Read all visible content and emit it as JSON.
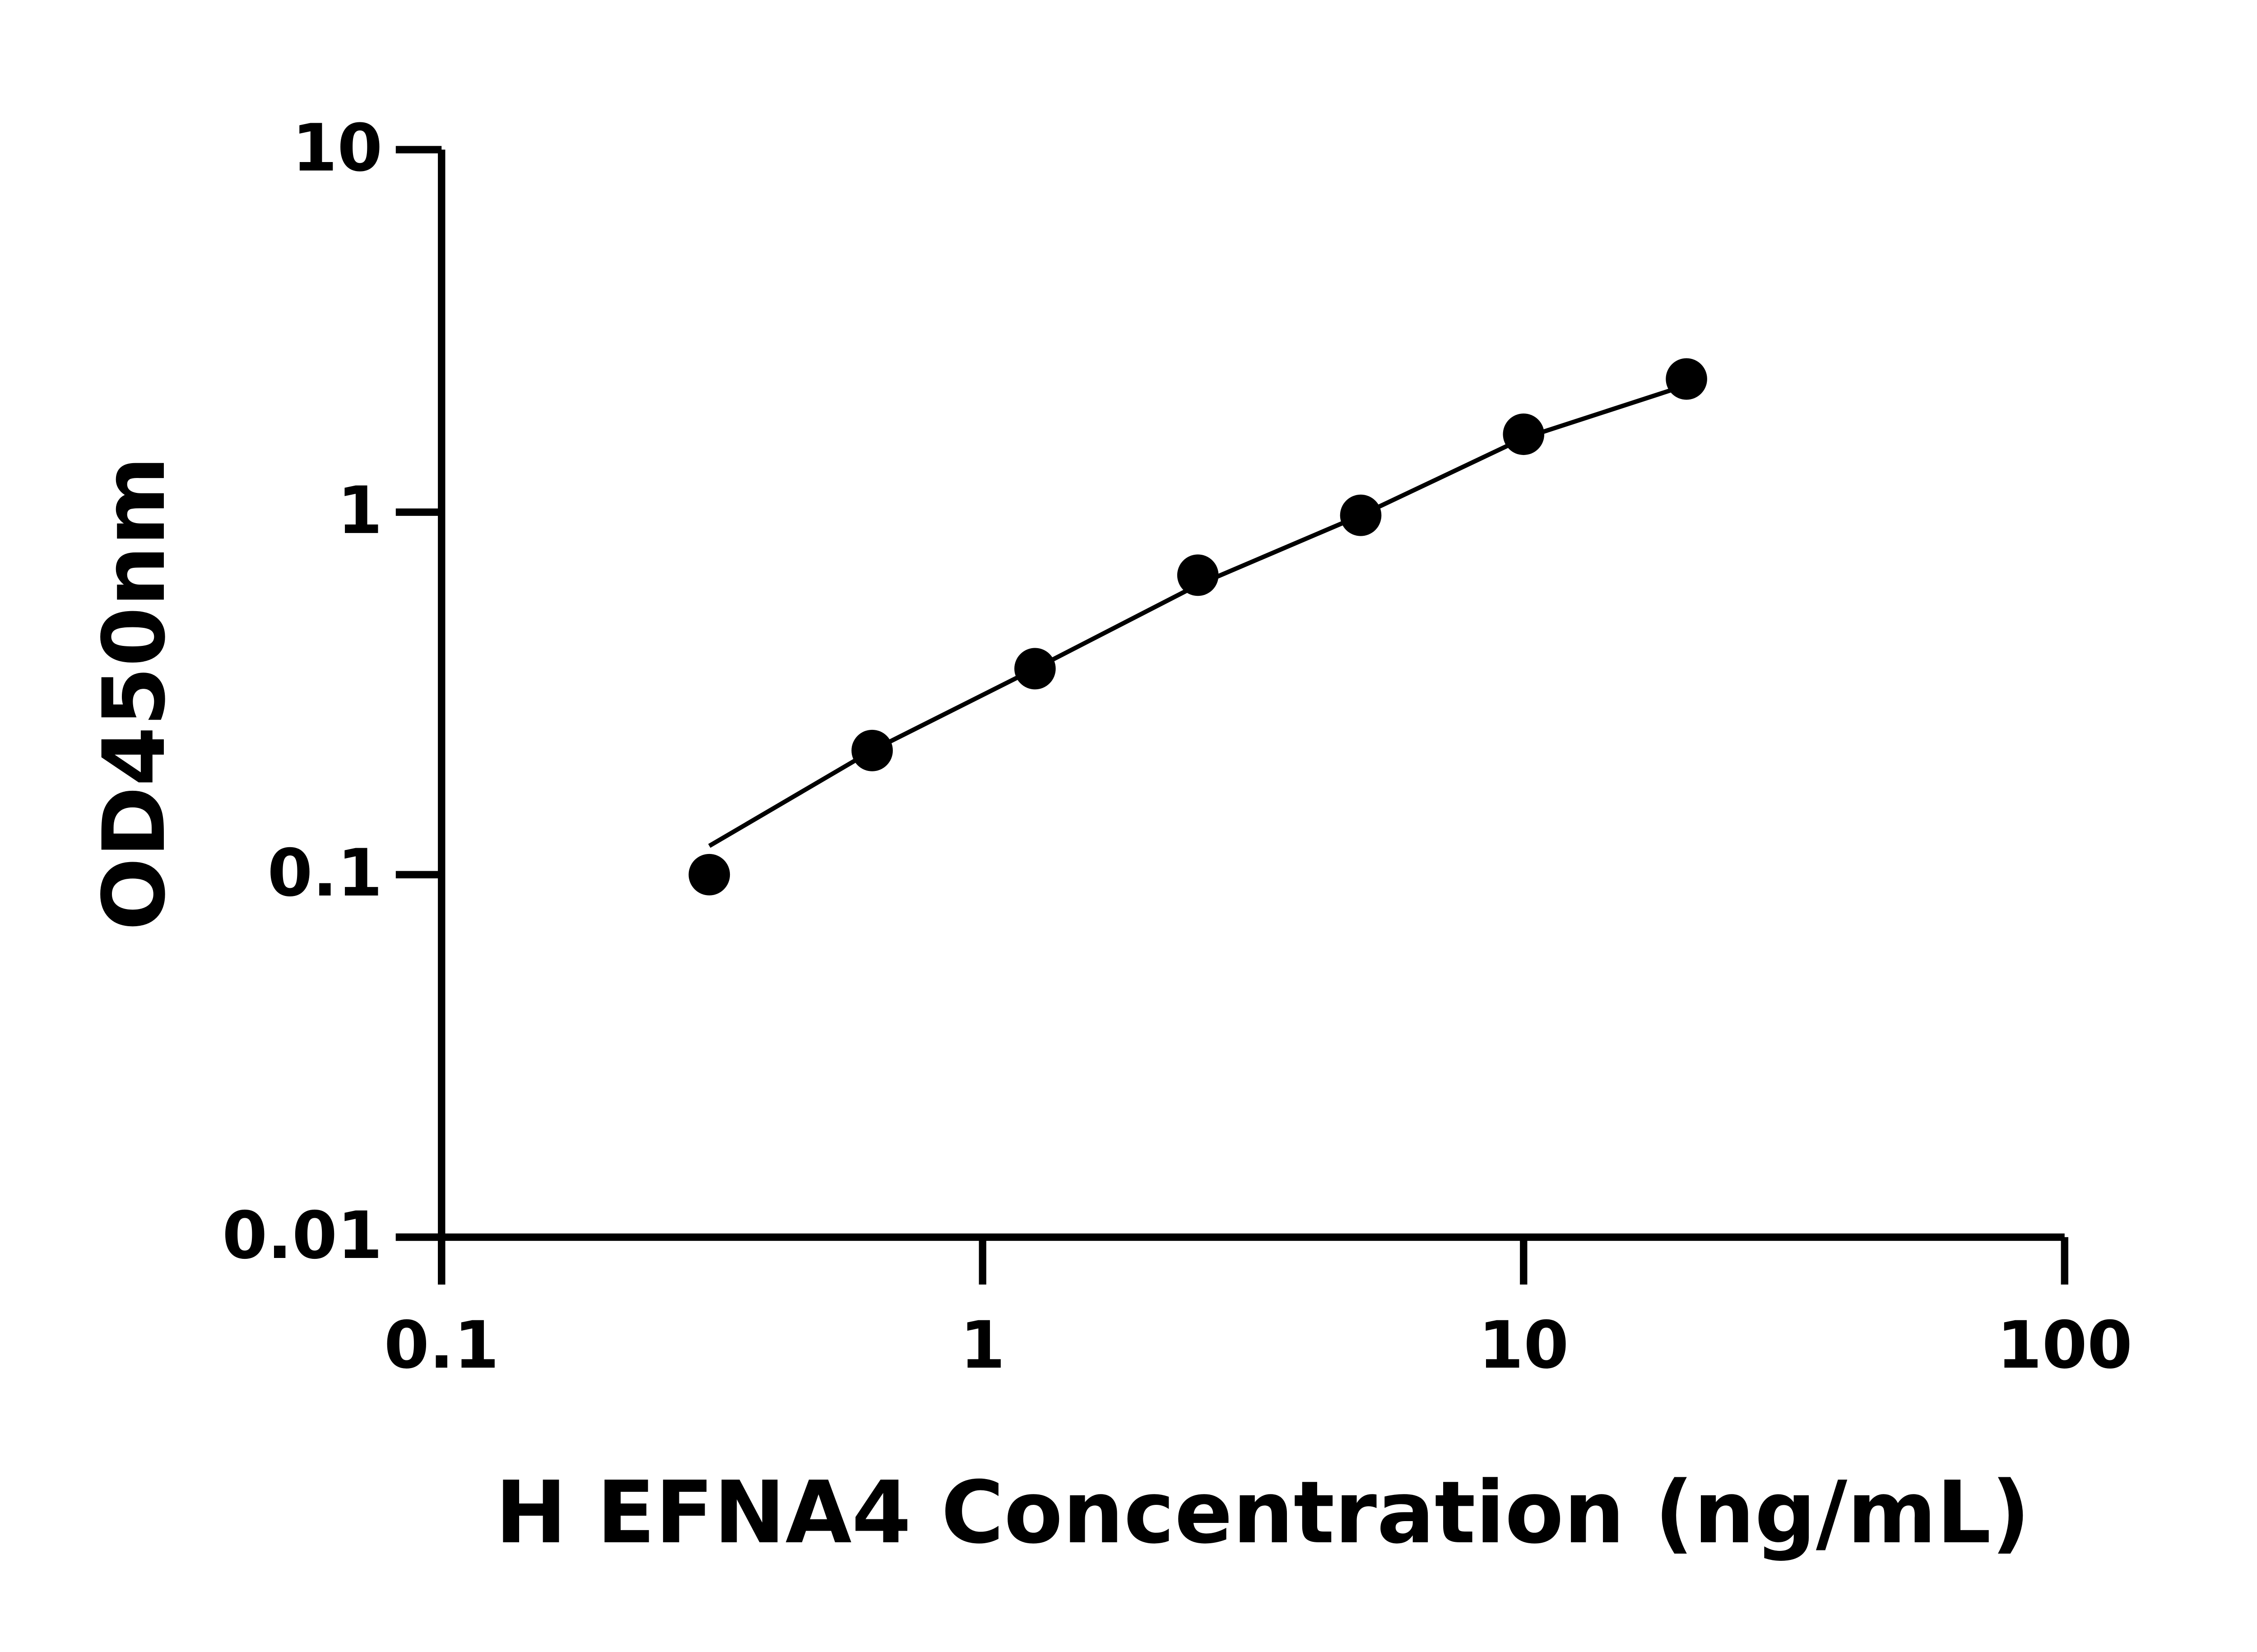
{
  "chart_data": {
    "type": "scatter",
    "x_label": "H EFNA4 Concentration (ng/mL)",
    "y_label": "OD450nm",
    "x": [
      0.3125,
      0.625,
      1.25,
      2.5,
      5,
      10,
      20
    ],
    "series": [
      {
        "color": "#000000",
        "mode": "markers",
        "values": [
          0.1,
          0.22,
          0.37,
          0.67,
          0.98,
          1.64,
          2.33
        ]
      },
      {
        "color": "#000000",
        "mode": "line",
        "values": [
          0.12,
          0.22,
          0.37,
          0.63,
          0.98,
          1.6,
          2.24
        ]
      }
    ],
    "xscale": "log",
    "yscale": "log",
    "xlim": [
      0.1,
      100
    ],
    "ylim": [
      0.01,
      10
    ],
    "xticks": [
      0.1,
      1,
      10,
      100
    ],
    "yticks": [
      0.01,
      0.1,
      1,
      10
    ]
  }
}
